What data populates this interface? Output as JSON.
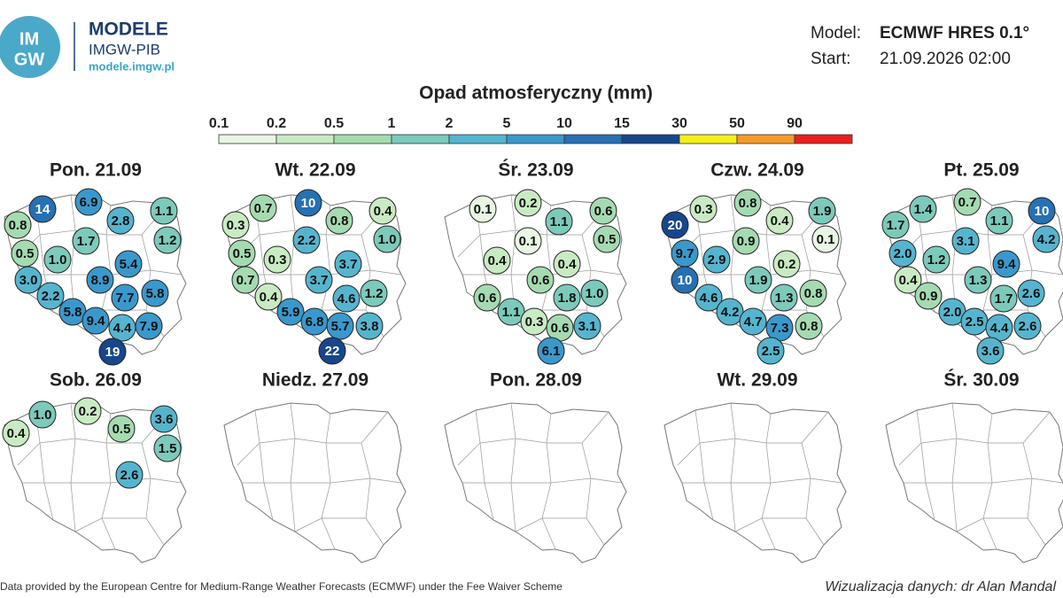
{
  "header": {
    "logo_top": "IM",
    "logo_bottom": "GW",
    "brand": "MODELE",
    "org": "IMGW-PIB",
    "url": "modele.imgw.pl",
    "model_label": "Model:",
    "model": "ECMWF HRES 0.1°",
    "start_label": "Start:",
    "start": "21.09.2026 02:00"
  },
  "legend": {
    "title": "Opad atmosferyczny (mm)",
    "thresholds": [
      0.1,
      0.2,
      0.5,
      1,
      2,
      5,
      10,
      15,
      30,
      50,
      90
    ],
    "colors": [
      "#e8f6e3",
      "#c9ebc3",
      "#a5dbb0",
      "#7ccabb",
      "#55b5cf",
      "#3a98cc",
      "#2670b4",
      "#17468c",
      "#f5ef1a",
      "#f59a2a",
      "#e8201e"
    ]
  },
  "days": [
    {
      "label": "Pon. 21.09",
      "values": [
        14,
        6.9,
        2.8,
        1.1,
        0.8,
        1.2,
        0.5,
        1.7,
        1.0,
        5.4,
        3.0,
        8.9,
        2.2,
        7.7,
        5.8,
        5.8,
        9.4,
        4.4,
        7.9,
        19
      ],
      "value_labels": [
        "14",
        "6.9",
        "2.8",
        "1.1",
        "0.8",
        "1.2",
        "0.5",
        "1.7",
        "1.0",
        "5.4",
        "3.0",
        "8.9",
        "2.2",
        "7.7",
        "5.8",
        "5.8",
        "9.4",
        "4.4",
        "7.9",
        "19"
      ]
    },
    {
      "label": "Wt. 22.09",
      "values": [
        0.7,
        10,
        0.4,
        0.3,
        0.8,
        1.0,
        0.5,
        2.2,
        0.3,
        3.7,
        0.7,
        3.7,
        0.4,
        4.6,
        1.2,
        5.9,
        6.8,
        5.7,
        3.8,
        22
      ],
      "value_labels": [
        "0.7",
        "10",
        "0.4",
        "0.3",
        "0.8",
        "1.0",
        "0.5",
        "2.2",
        "0.3",
        "3.7",
        "0.7",
        "3.7",
        "0.4",
        "4.6",
        "1.2",
        "5.9",
        "6.8",
        "5.7",
        "3.8",
        "22"
      ]
    },
    {
      "label": "Śr. 23.09",
      "values": [
        0.1,
        0.2,
        0.6,
        1.1,
        0.5,
        0.1,
        0.4,
        0.4,
        0.6,
        0.6,
        1.8,
        1.0,
        1.1,
        0.3,
        0.6,
        3.1,
        6.1
      ],
      "value_labels": [
        "0.1",
        "0.2",
        "0.6",
        "1.1",
        "0.5",
        "0.1",
        "0.4",
        "0.4",
        "0.6",
        "0.6",
        "1.8",
        "1.0",
        "1.1",
        "0.3",
        "0.6",
        "3.1",
        "6.1"
      ]
    },
    {
      "label": "Czw. 24.09",
      "values": [
        20,
        0.3,
        0.8,
        0.4,
        1.9,
        9.7,
        2.9,
        0.9,
        0.1,
        10,
        0.2,
        1.9,
        4.6,
        1.3,
        0.8,
        4.2,
        4.7,
        7.3,
        0.8,
        2.5
      ],
      "value_labels": [
        "20",
        "0.3",
        "0.8",
        "0.4",
        "1.9",
        "9.7",
        "2.9",
        "0.9",
        "0.1",
        "10",
        "0.2",
        "1.9",
        "4.6",
        "1.3",
        "0.8",
        "4.2",
        "4.7",
        "7.3",
        "0.8",
        "2.5"
      ]
    },
    {
      "label": "Pt. 25.09",
      "values": [
        1.4,
        0.7,
        10,
        1.7,
        1.1,
        4.2,
        2.0,
        1.2,
        3.1,
        9.4,
        0.4,
        1.3,
        0.9,
        1.7,
        2.6,
        2.0,
        2.5,
        4.4,
        2.6,
        3.6
      ],
      "value_labels": [
        "1.4",
        "0.7",
        "10",
        "1.7",
        "1.1",
        "4.2",
        "2.0",
        "1.2",
        "3.1",
        "9.4",
        "0.4",
        "1.3",
        "0.9",
        "1.7",
        "2.6",
        "2.0",
        "2.5",
        "4.4",
        "2.6",
        "3.6"
      ]
    },
    {
      "label": "Sob. 26.09",
      "values": [
        1.0,
        0.2,
        3.6,
        0.4,
        0.5,
        1.5,
        2.6
      ],
      "value_labels": [
        "1.0",
        "0.2",
        "3.6",
        "0.4",
        "0.5",
        "1.5",
        "2.6"
      ]
    },
    {
      "label": "Niedz. 27.09",
      "values": [],
      "value_labels": []
    },
    {
      "label": "Pon. 28.09",
      "values": [],
      "value_labels": []
    },
    {
      "label": "Wt. 29.09",
      "values": [],
      "value_labels": []
    },
    {
      "label": "Śr. 30.09",
      "values": [],
      "value_labels": []
    }
  ],
  "footer": {
    "source": "Data provided by the European Centre for Medium-Range Weather Forecasts (ECMWF) under the Fee Waiver Scheme",
    "author": "Wizualizacja danych: dr Alan Mandal"
  }
}
